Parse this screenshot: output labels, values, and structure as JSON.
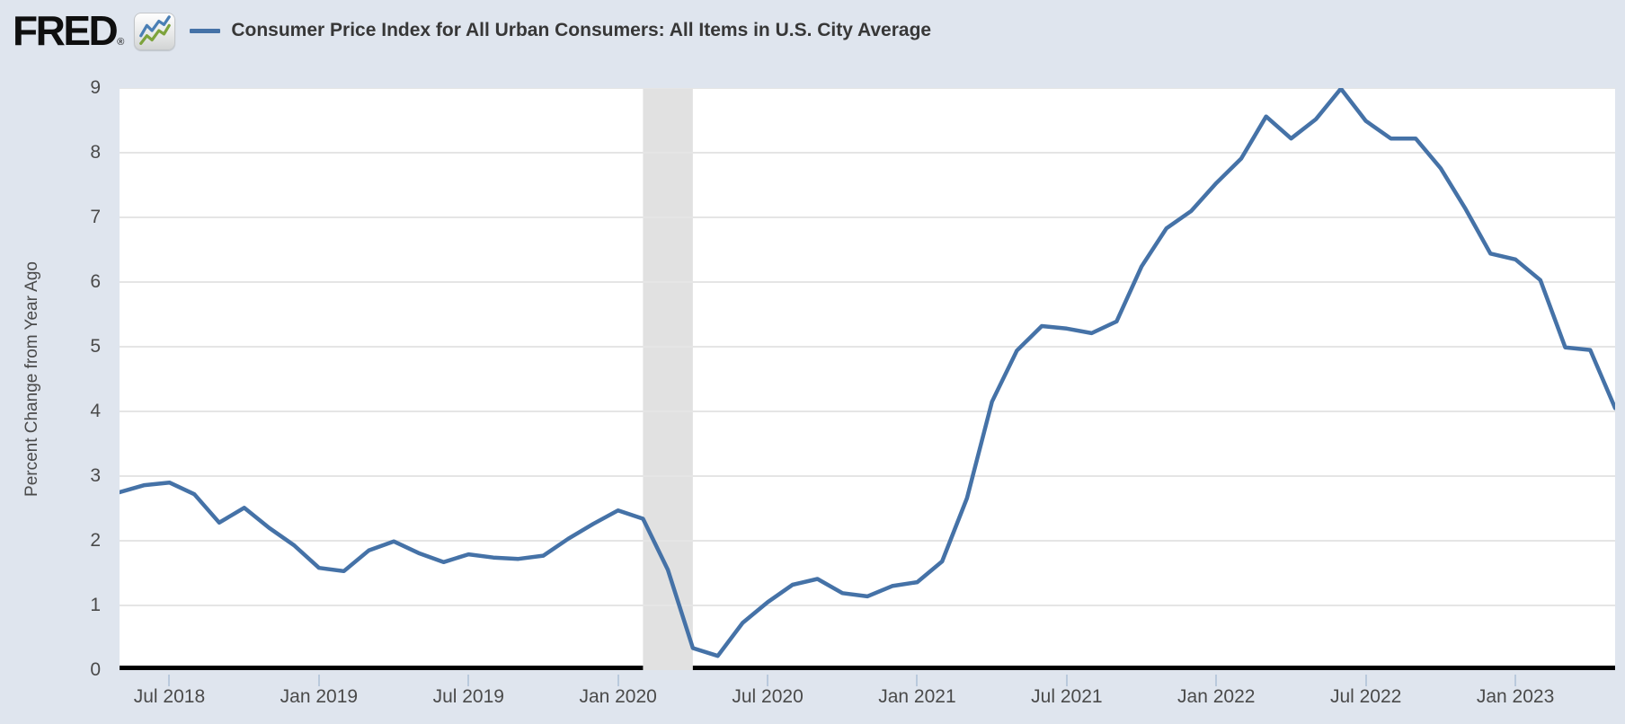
{
  "header": {
    "logo_text": "FRED",
    "registered_mark": "®",
    "logo_icon": "fred-line-chart-icon"
  },
  "colors": {
    "background": "#dfe5ee",
    "plot_background": "#ffffff",
    "line": "#4572a7",
    "gridline": "#e5e5e5",
    "recession_band": "#e1e1e1",
    "axis_line": "#000000",
    "tick_mark": "#b9c9dc",
    "label_text": "#4a4a4a",
    "title_text": "#373737",
    "logo_icon_blue": "#4a7fb5",
    "logo_icon_green": "#7da33c"
  },
  "chart_data": {
    "type": "line",
    "title": "Consumer Price Index for All Urban Consumers: All Items in U.S. City Average",
    "xlabel": "",
    "ylabel": "Percent Change from Year Ago",
    "ylim": [
      0,
      9
    ],
    "yticks": [
      0,
      1,
      2,
      3,
      4,
      5,
      6,
      7,
      8,
      9
    ],
    "grid": true,
    "legend": [
      {
        "name": "Consumer Price Index for All Urban Consumers: All Items in U.S. City Average",
        "color": "#4572a7"
      }
    ],
    "x_range": [
      "2018-05",
      "2023-05"
    ],
    "x": [
      "2018-05",
      "2018-06",
      "2018-07",
      "2018-08",
      "2018-09",
      "2018-10",
      "2018-11",
      "2018-12",
      "2019-01",
      "2019-02",
      "2019-03",
      "2019-04",
      "2019-05",
      "2019-06",
      "2019-07",
      "2019-08",
      "2019-09",
      "2019-10",
      "2019-11",
      "2019-12",
      "2020-01",
      "2020-02",
      "2020-03",
      "2020-04",
      "2020-05",
      "2020-06",
      "2020-07",
      "2020-08",
      "2020-09",
      "2020-10",
      "2020-11",
      "2020-12",
      "2021-01",
      "2021-02",
      "2021-03",
      "2021-04",
      "2021-05",
      "2021-06",
      "2021-07",
      "2021-08",
      "2021-09",
      "2021-10",
      "2021-11",
      "2021-12",
      "2022-01",
      "2022-02",
      "2022-03",
      "2022-04",
      "2022-05",
      "2022-06",
      "2022-07",
      "2022-08",
      "2022-09",
      "2022-10",
      "2022-11",
      "2022-12",
      "2023-01",
      "2023-02",
      "2023-03",
      "2023-04",
      "2023-05"
    ],
    "values": [
      2.75,
      2.86,
      2.9,
      2.72,
      2.28,
      2.51,
      2.2,
      1.93,
      1.58,
      1.53,
      1.85,
      1.99,
      1.81,
      1.67,
      1.79,
      1.74,
      1.72,
      1.77,
      2.03,
      2.26,
      2.47,
      2.34,
      1.55,
      0.34,
      0.22,
      0.73,
      1.05,
      1.32,
      1.41,
      1.19,
      1.14,
      1.3,
      1.36,
      1.68,
      2.66,
      4.15,
      4.94,
      5.32,
      5.28,
      5.21,
      5.39,
      6.24,
      6.83,
      7.1,
      7.53,
      7.91,
      8.56,
      8.22,
      8.52,
      8.99,
      8.49,
      8.22,
      8.22,
      7.76,
      7.13,
      6.44,
      6.35,
      6.03,
      4.99,
      4.95,
      4.05
    ],
    "xticks": [
      {
        "label": "Jul 2018",
        "month_index": 2
      },
      {
        "label": "Jan 2019",
        "month_index": 8
      },
      {
        "label": "Jul 2019",
        "month_index": 14
      },
      {
        "label": "Jan 2020",
        "month_index": 20
      },
      {
        "label": "Jul 2020",
        "month_index": 26
      },
      {
        "label": "Jan 2021",
        "month_index": 32
      },
      {
        "label": "Jul 2021",
        "month_index": 38
      },
      {
        "label": "Jan 2022",
        "month_index": 44
      },
      {
        "label": "Jul 2022",
        "month_index": 50
      },
      {
        "label": "Jan 2023",
        "month_index": 56
      }
    ],
    "recession_shading": {
      "start": "2020-02",
      "end": "2020-04"
    },
    "legend_position": "top"
  }
}
